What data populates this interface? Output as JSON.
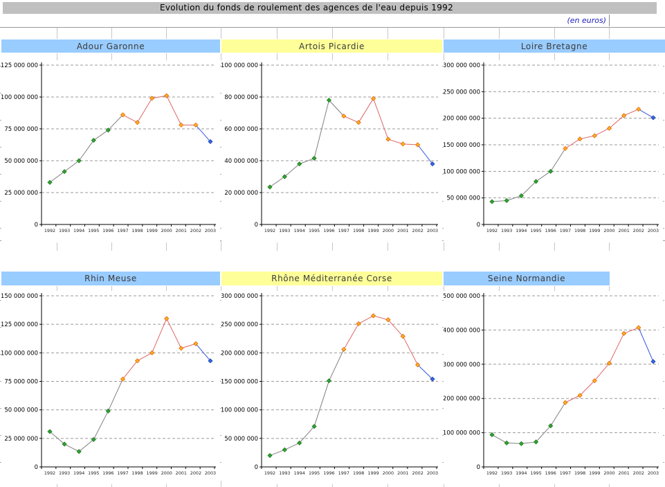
{
  "title_bar": {
    "title": "Evolution du fonds de roulement des agences de l'eau depuis 1992"
  },
  "subtitle": {
    "text": "(en euros)"
  },
  "years": [
    "1992",
    "1993",
    "1994",
    "1995",
    "1996",
    "1997",
    "1998",
    "1999",
    "2000",
    "2001",
    "2002",
    "2003"
  ],
  "colors": {
    "title_bg": "#C0C0C0",
    "header_blue": "#99CCFF",
    "header_yellow": "#FFFF99",
    "subtitle_text": "#2121BE",
    "line_gray": "#808080",
    "line_red": "#DD6666",
    "line_blue": "#3355DD",
    "marker_green": "#33A333",
    "marker_green_edge": "#1E7A1E",
    "marker_orange": "#FFB324",
    "marker_orange_edge": "#E06000",
    "marker_blue": "#3366E6",
    "marker_blue_edge": "#2244AA",
    "grid": "#999999"
  },
  "chart_data": [
    {
      "type": "line",
      "title": "Adour Garonne",
      "header": "blue",
      "ylim": [
        0,
        125000000
      ],
      "ytick_step": 25000000,
      "grid": true,
      "legend": "none",
      "categories": [
        "1992",
        "1993",
        "1994",
        "1995",
        "1996",
        "1997",
        "1998",
        "1999",
        "2000",
        "2001",
        "2002",
        "2003"
      ],
      "values": [
        33000000,
        41500000,
        50000000,
        66000000,
        74000000,
        86000000,
        80000000,
        99000000,
        101000000,
        78000000,
        78000000,
        65000000
      ]
    },
    {
      "type": "line",
      "title": "Artois Picardie",
      "header": "yellow",
      "ylim": [
        0,
        100000000
      ],
      "ytick_step": 20000000,
      "grid": true,
      "legend": "none",
      "categories": [
        "1992",
        "1993",
        "1994",
        "1995",
        "1996",
        "1997",
        "1998",
        "1999",
        "2000",
        "2001",
        "2002",
        "2003"
      ],
      "values": [
        23500000,
        30000000,
        38000000,
        41500000,
        78000000,
        68000000,
        64000000,
        79000000,
        53500000,
        50500000,
        50000000,
        38000000
      ]
    },
    {
      "type": "line",
      "title": "Loire Bretagne",
      "header": "blue",
      "ylim": [
        0,
        300000000
      ],
      "ytick_step": 50000000,
      "grid": true,
      "legend": "none",
      "categories": [
        "1992",
        "1993",
        "1994",
        "1995",
        "1996",
        "1997",
        "1998",
        "1999",
        "2000",
        "2001",
        "2002",
        "2003"
      ],
      "values": [
        43000000,
        45000000,
        54000000,
        81000000,
        100000000,
        143000000,
        161000000,
        167000000,
        181000000,
        205000000,
        217000000,
        201000000
      ]
    },
    {
      "type": "line",
      "title": "Rhin Meuse",
      "header": "blue",
      "ylim": [
        0,
        150000000
      ],
      "ytick_step": 25000000,
      "grid": true,
      "legend": "none",
      "categories": [
        "1992",
        "1993",
        "1994",
        "1995",
        "1996",
        "1997",
        "1998",
        "1999",
        "2000",
        "2001",
        "2002",
        "2003"
      ],
      "values": [
        31000000,
        20000000,
        13500000,
        24000000,
        49000000,
        77000000,
        93000000,
        100000000,
        130000000,
        104000000,
        108000000,
        93000000
      ]
    },
    {
      "type": "line",
      "title": "Rhône Méditerranée Corse",
      "header": "yellow",
      "ylim": [
        0,
        300000000
      ],
      "ytick_step": 50000000,
      "grid": true,
      "legend": "none",
      "categories": [
        "1992",
        "1993",
        "1994",
        "1995",
        "1996",
        "1997",
        "1998",
        "1999",
        "2000",
        "2001",
        "2002",
        "2003"
      ],
      "values": [
        20000000,
        30000000,
        42000000,
        71000000,
        151000000,
        206000000,
        251000000,
        265000000,
        258000000,
        229000000,
        179000000,
        154000000
      ]
    },
    {
      "type": "line",
      "title": "Seine Normandie",
      "header": "blue",
      "ylim": [
        0,
        500000000
      ],
      "ytick_step": 100000000,
      "grid": true,
      "legend": "none",
      "categories": [
        "1992",
        "1993",
        "1994",
        "1995",
        "1996",
        "1997",
        "1998",
        "1999",
        "2000",
        "2001",
        "2002",
        "2003"
      ],
      "values": [
        94000000,
        70000000,
        68000000,
        73000000,
        120000000,
        188000000,
        209000000,
        252000000,
        303000000,
        390000000,
        407000000,
        308000000
      ]
    }
  ]
}
